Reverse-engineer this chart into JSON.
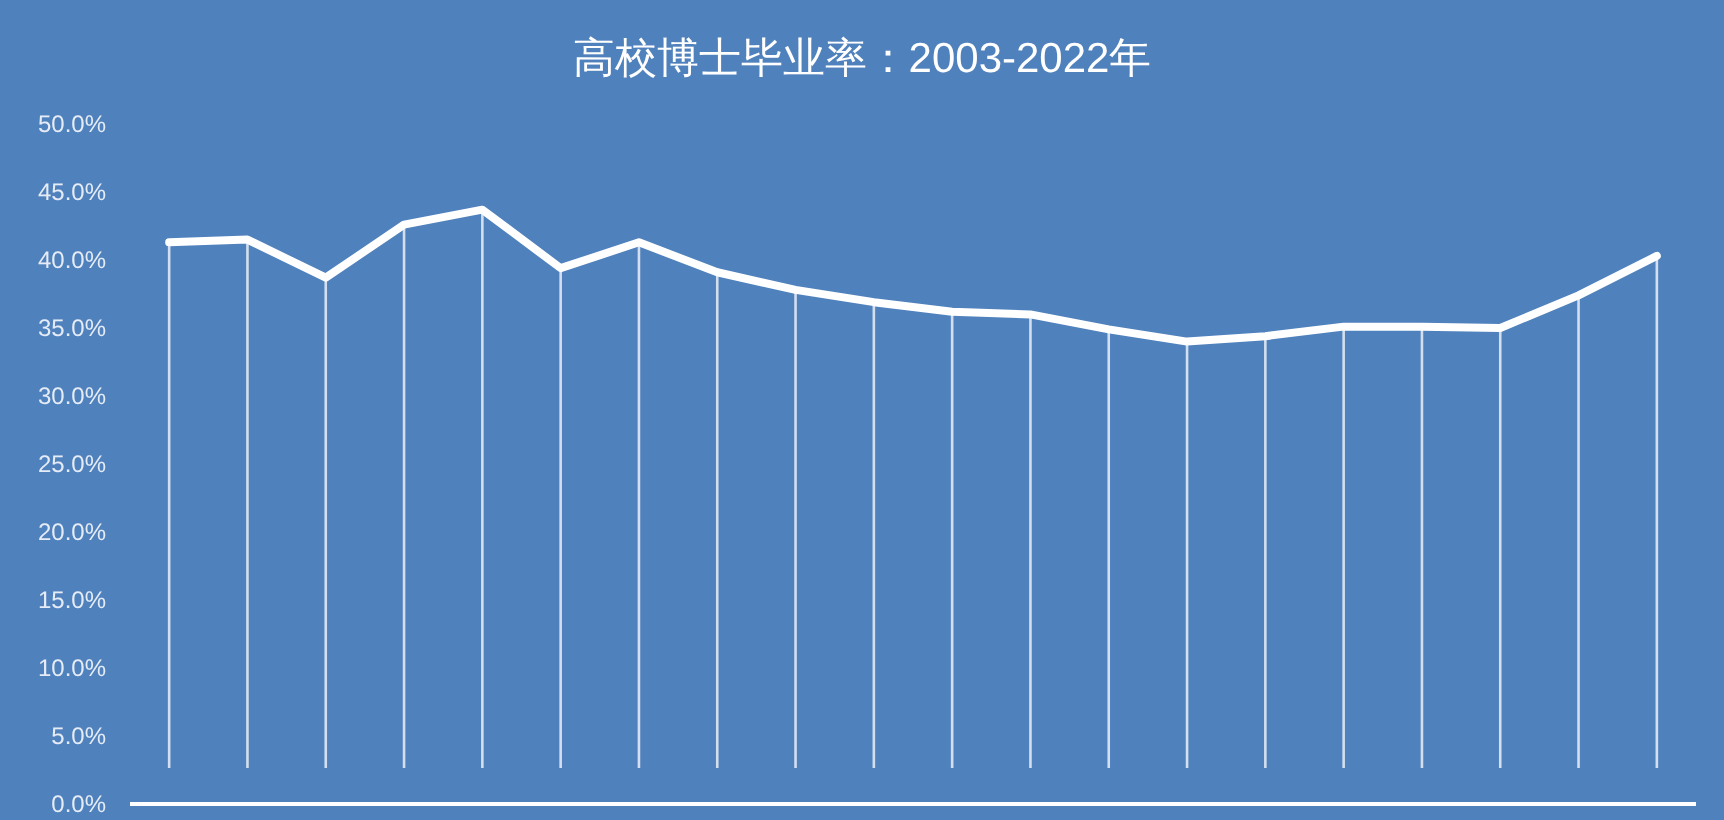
{
  "chart_data": {
    "type": "line",
    "title": "高校博士毕业率：2003-2022年",
    "categories": [
      null,
      null,
      null,
      null,
      null,
      null,
      null,
      null,
      null,
      null,
      null,
      null,
      null,
      null,
      null,
      null,
      null,
      null,
      null,
      null
    ],
    "values": [
      41.3,
      41.5,
      38.7,
      42.6,
      43.7,
      39.4,
      41.3,
      39.1,
      37.8,
      36.9,
      36.2,
      36.0,
      34.9,
      34.0,
      34.4,
      35.1,
      35.1,
      35.0,
      37.4,
      40.3
    ],
    "color": "#ffffff",
    "grid": "x",
    "ylim": [
      0,
      50
    ],
    "yticks": [
      {
        "value": 0,
        "label": "0.0%"
      },
      {
        "value": 5,
        "label": "5.0%"
      },
      {
        "value": 10,
        "label": "10.0%"
      },
      {
        "value": 15,
        "label": "15.0%"
      },
      {
        "value": 20,
        "label": "20.0%"
      },
      {
        "value": 25,
        "label": "25.0%"
      },
      {
        "value": 30,
        "label": "30.0%"
      },
      {
        "value": 35,
        "label": "35.0%"
      },
      {
        "value": 40,
        "label": "40.0%"
      },
      {
        "value": 45,
        "label": "45.0%"
      },
      {
        "value": 50,
        "label": "50.0%"
      }
    ]
  }
}
